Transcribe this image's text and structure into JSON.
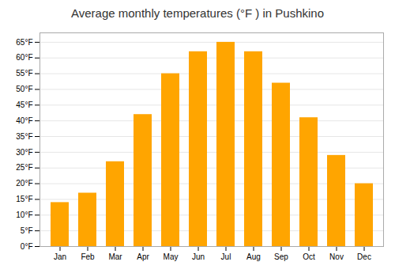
{
  "chart_data": {
    "type": "bar",
    "title": "Average monthly temperatures (°F ) in Pushkino",
    "categories": [
      "Jan",
      "Feb",
      "Mar",
      "Apr",
      "May",
      "Jun",
      "Jul",
      "Aug",
      "Sep",
      "Oct",
      "Nov",
      "Dec"
    ],
    "values": [
      14,
      17,
      27,
      42,
      55,
      62,
      65,
      62,
      52,
      41,
      29,
      20
    ],
    "color": "#FFA500",
    "ylim": [
      0,
      68
    ],
    "yticks": [
      {
        "value": 0,
        "label": "0°F"
      },
      {
        "value": 5,
        "label": "5°F"
      },
      {
        "value": 10,
        "label": "10°F"
      },
      {
        "value": 15,
        "label": "15°F"
      },
      {
        "value": 20,
        "label": "20°F"
      },
      {
        "value": 25,
        "label": "25°F"
      },
      {
        "value": 30,
        "label": "30°F"
      },
      {
        "value": 35,
        "label": "35°F"
      },
      {
        "value": 40,
        "label": "40°F"
      },
      {
        "value": 45,
        "label": "45°F"
      },
      {
        "value": 50,
        "label": "50°F"
      },
      {
        "value": 55,
        "label": "55°F"
      },
      {
        "value": 60,
        "label": "60°F"
      },
      {
        "value": 65,
        "label": "65°F"
      }
    ],
    "grid": true
  }
}
